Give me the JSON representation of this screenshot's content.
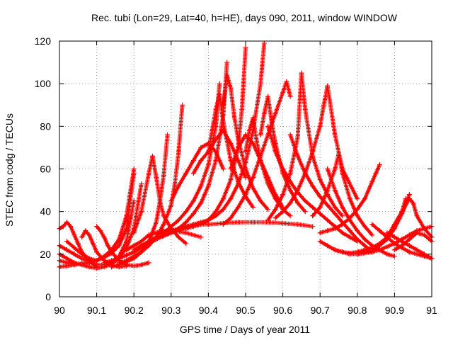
{
  "chart_data": {
    "type": "scatter",
    "title": "Rec. tubi (Lon=29, Lat=40, h=HE), days 090, 2011, window WINDOW",
    "xlabel": "GPS time / Days of year 2011",
    "ylabel": "STEC from codg / TECUs",
    "xlim": [
      90,
      91
    ],
    "ylim": [
      0,
      120
    ],
    "xticks": [
      "90",
      "90.1",
      "90.2",
      "90.3",
      "90.4",
      "90.5",
      "90.6",
      "90.7",
      "90.8",
      "90.9",
      "91"
    ],
    "yticks": [
      "0",
      "20",
      "40",
      "60",
      "80",
      "100",
      "120"
    ],
    "grid": true,
    "marker": "+",
    "color": "#ff0000",
    "series": [
      {
        "x": [
          90.0,
          90.02,
          90.04,
          90.06,
          90.08,
          90.1,
          90.12,
          90.14,
          90.16,
          90.18,
          90.2
        ],
        "y": [
          17,
          16,
          15.5,
          15.5,
          16,
          17,
          19,
          22,
          27,
          38,
          60
        ]
      },
      {
        "x": [
          90.0,
          90.02,
          90.04,
          90.06,
          90.08,
          90.1,
          90.12,
          90.14,
          90.16,
          90.18,
          90.2
        ],
        "y": [
          14,
          14.5,
          15,
          15.5,
          16,
          17,
          18.5,
          20.5,
          24,
          32,
          58
        ]
      },
      {
        "x": [
          90.0,
          90.02,
          90.04,
          90.06,
          90.08,
          90.1,
          90.12,
          90.14,
          90.16,
          90.18,
          90.2,
          90.22
        ],
        "y": [
          20,
          18,
          16,
          15,
          14,
          13.5,
          14,
          15.5,
          18,
          23,
          32,
          53
        ]
      },
      {
        "x": [
          90.0,
          90.02,
          90.04,
          90.06,
          90.08,
          90.1,
          90.12,
          90.14,
          90.16,
          90.18,
          90.2
        ],
        "y": [
          24,
          22,
          20,
          18,
          16.5,
          15,
          15,
          16,
          19,
          26,
          45
        ]
      },
      {
        "x": [
          90.0,
          90.01,
          90.02,
          90.03,
          90.04,
          90.05,
          90.06,
          90.08,
          90.1
        ],
        "y": [
          32,
          33,
          35,
          33,
          29,
          25,
          21,
          17,
          14
        ]
      },
      {
        "x": [
          90.06,
          90.07,
          90.08,
          90.09,
          90.1,
          90.12,
          90.14,
          90.16,
          90.18
        ],
        "y": [
          28,
          31,
          29,
          25,
          21,
          17,
          15,
          14,
          14.5
        ]
      },
      {
        "x": [
          90.1,
          90.11,
          90.12,
          90.13,
          90.14,
          90.16,
          90.18,
          90.2,
          90.22,
          90.24
        ],
        "y": [
          33,
          31,
          28,
          24,
          21,
          17,
          15,
          14.5,
          15,
          16
        ]
      },
      {
        "x": [
          90.14,
          90.16,
          90.18,
          90.2,
          90.22,
          90.24,
          90.26,
          90.27,
          90.28,
          90.29
        ],
        "y": [
          14,
          15,
          16.5,
          18,
          21,
          26,
          35,
          45,
          57,
          76
        ]
      },
      {
        "x": [
          90.16,
          90.18,
          90.2,
          90.22,
          90.24,
          90.26,
          90.28,
          90.3,
          90.31,
          90.32,
          90.33
        ],
        "y": [
          16,
          17,
          19,
          21,
          24,
          28,
          34,
          43,
          53,
          68,
          90
        ]
      },
      {
        "x": [
          90.2,
          90.22,
          90.24,
          90.25,
          90.26,
          90.27,
          90.28,
          90.3,
          90.32,
          90.34
        ],
        "y": [
          30,
          40,
          58,
          66,
          56,
          45,
          38,
          32,
          28,
          25
        ]
      },
      {
        "x": [
          90.18,
          90.2,
          90.22,
          90.24,
          90.26,
          90.28,
          90.3,
          90.34,
          90.38
        ],
        "y": [
          22,
          24,
          26,
          29,
          30,
          31,
          31,
          30,
          28
        ]
      },
      {
        "x": [
          90.2,
          90.22,
          90.24,
          90.26,
          90.28,
          90.3,
          90.32,
          90.34,
          90.36,
          90.38,
          90.4,
          90.42,
          90.43
        ],
        "y": [
          22,
          24,
          26,
          28,
          30,
          33,
          36,
          40,
          45,
          52,
          62,
          80,
          100
        ]
      },
      {
        "x": [
          90.24,
          90.26,
          90.28,
          90.3,
          90.32,
          90.34,
          90.36,
          90.38,
          90.4,
          90.42,
          90.44,
          90.45
        ],
        "y": [
          26,
          28,
          29,
          30,
          32,
          35,
          39,
          44,
          52,
          64,
          85,
          110
        ]
      },
      {
        "x": [
          90.28,
          90.3,
          90.32,
          90.34,
          90.36,
          90.38,
          90.4,
          90.42,
          90.44,
          90.46,
          90.48,
          90.49,
          90.5
        ],
        "y": [
          30,
          31,
          31.5,
          32,
          33,
          34,
          36,
          40,
          46,
          55,
          70,
          88,
          117
        ]
      },
      {
        "x": [
          90.3,
          90.32,
          90.34,
          90.36,
          90.38,
          90.4,
          90.42,
          90.44,
          90.46,
          90.48,
          90.5,
          90.52,
          90.54,
          90.55
        ],
        "y": [
          31,
          32,
          33,
          34,
          35,
          36,
          38,
          41,
          46,
          53,
          63,
          78,
          100,
          119
        ]
      },
      {
        "x": [
          90.4,
          90.41,
          90.42,
          90.43,
          90.44,
          90.46,
          90.48,
          90.5,
          90.52
        ],
        "y": [
          68,
          78,
          88,
          95,
          82,
          64,
          54,
          47,
          42
        ]
      },
      {
        "x": [
          90.44,
          90.45,
          90.46,
          90.47,
          90.48,
          90.5,
          90.52,
          90.54,
          90.56
        ],
        "y": [
          90,
          104,
          98,
          84,
          74,
          60,
          51,
          45,
          41
        ]
      },
      {
        "x": [
          90.5,
          90.51,
          90.52,
          90.53,
          90.54,
          90.56,
          90.58,
          90.6,
          90.62
        ],
        "y": [
          68,
          78,
          84,
          73,
          64,
          53,
          46,
          41,
          38
        ]
      },
      {
        "x": [
          90.54,
          90.55,
          90.56,
          90.57,
          90.58,
          90.6,
          90.62,
          90.64,
          90.66
        ],
        "y": [
          76,
          86,
          94,
          82,
          72,
          58,
          50,
          44,
          40
        ]
      },
      {
        "x": [
          90.44,
          90.46,
          90.48,
          90.5,
          90.52,
          90.54,
          90.56,
          90.58,
          90.6,
          90.61,
          90.62
        ],
        "y": [
          34,
          37,
          42,
          48,
          56,
          66,
          76,
          86,
          96,
          101,
          94
        ]
      },
      {
        "x": [
          90.56,
          90.58,
          90.6,
          90.62,
          90.64,
          90.65,
          90.66,
          90.68,
          90.7,
          90.72,
          90.74,
          90.76
        ],
        "y": [
          36,
          41,
          48,
          58,
          75,
          105,
          88,
          66,
          55,
          48,
          42,
          38
        ]
      },
      {
        "x": [
          90.58,
          90.6,
          90.62,
          90.64,
          90.66,
          90.68,
          90.7,
          90.71,
          90.72,
          90.74,
          90.76,
          90.8
        ],
        "y": [
          37,
          40,
          44,
          50,
          58,
          68,
          80,
          90,
          99,
          76,
          60,
          46
        ]
      },
      {
        "x": [
          90.56,
          90.58,
          90.6,
          90.62,
          90.64,
          90.66,
          90.68,
          90.7,
          90.72,
          90.74,
          90.76,
          90.78,
          90.8
        ],
        "y": [
          80,
          68,
          60,
          54,
          49,
          45,
          42,
          39,
          36,
          33,
          30,
          28,
          26
        ]
      },
      {
        "x": [
          90.62,
          90.64,
          90.66,
          90.68,
          90.7,
          90.72,
          90.74,
          90.76,
          90.78,
          90.8,
          90.82,
          90.84
        ],
        "y": [
          76,
          66,
          58,
          52,
          47,
          43,
          39,
          35,
          31,
          27,
          24,
          21
        ]
      },
      {
        "x": [
          90.68,
          90.7,
          90.72,
          90.74,
          90.75,
          90.76,
          90.78,
          90.8,
          90.82,
          90.84
        ],
        "y": [
          38,
          42,
          50,
          60,
          67,
          58,
          46,
          38,
          33,
          29
        ]
      },
      {
        "x": [
          90.7,
          90.72,
          90.74,
          90.76,
          90.78,
          90.8,
          90.82,
          90.84,
          90.85,
          90.86
        ],
        "y": [
          30,
          31,
          32,
          34,
          37,
          41,
          46,
          54,
          58,
          62
        ]
      },
      {
        "x": [
          90.72,
          90.74,
          90.76,
          90.78,
          90.8,
          90.82,
          90.84,
          90.86,
          90.88,
          90.9
        ],
        "y": [
          60,
          50,
          42,
          36,
          31,
          27,
          24,
          22,
          20,
          19
        ]
      },
      {
        "x": [
          90.7,
          90.72,
          90.74,
          90.76,
          90.78,
          90.8,
          90.82,
          90.84,
          90.86,
          90.88,
          90.9,
          90.92,
          90.94
        ],
        "y": [
          26,
          24,
          22,
          21,
          20,
          20,
          21,
          22,
          24,
          27,
          32,
          39,
          48
        ]
      },
      {
        "x": [
          90.74,
          90.76,
          90.78,
          90.8,
          90.82,
          90.84,
          90.86,
          90.88,
          90.9,
          90.92,
          90.93
        ],
        "y": [
          22,
          21,
          20.5,
          21,
          22,
          23,
          25,
          28,
          33,
          40,
          46
        ]
      },
      {
        "x": [
          90.8,
          90.82,
          90.84,
          90.86,
          90.88,
          90.9,
          90.92,
          90.94,
          90.96,
          90.98,
          91.0
        ],
        "y": [
          20,
          20.5,
          21,
          22,
          23.5,
          25,
          27,
          29,
          31,
          32,
          33
        ]
      },
      {
        "x": [
          90.86,
          90.88,
          90.9,
          90.92,
          90.94,
          90.95,
          90.96,
          90.98,
          91.0
        ],
        "y": [
          24,
          28,
          34,
          40,
          46,
          44,
          38,
          32,
          28
        ]
      },
      {
        "x": [
          90.84,
          90.86,
          90.88,
          90.9,
          90.92,
          90.94,
          90.96,
          90.98,
          91.0
        ],
        "y": [
          34,
          31,
          28,
          25,
          23,
          21,
          20,
          19,
          18
        ]
      },
      {
        "x": [
          90.88,
          90.9,
          90.92,
          90.94,
          90.96,
          90.98,
          91.0
        ],
        "y": [
          30,
          28,
          26,
          24,
          22,
          20,
          18
        ]
      },
      {
        "x": [
          90.9,
          90.92,
          90.94,
          90.96,
          90.98,
          91.0
        ],
        "y": [
          22,
          24,
          27,
          30,
          29,
          26
        ]
      },
      {
        "x": [
          90.12,
          90.14,
          90.16,
          90.18,
          90.2,
          90.22,
          90.24,
          90.26,
          90.28,
          90.3,
          90.32,
          90.34,
          90.36,
          90.38,
          90.4
        ],
        "y": [
          16,
          17,
          18,
          19.5,
          21,
          23,
          25,
          27,
          28.5,
          30,
          31.5,
          33,
          33.5,
          34,
          34
        ]
      },
      {
        "x": [
          90.4,
          90.44,
          90.48,
          90.52,
          90.56,
          90.6,
          90.64,
          90.68
        ],
        "y": [
          34,
          34.5,
          35,
          35,
          35,
          34.5,
          34,
          33
        ]
      },
      {
        "x": [
          90.3,
          90.32,
          90.34,
          90.36,
          90.38,
          90.4,
          90.42,
          90.44
        ],
        "y": [
          45,
          52,
          58,
          64,
          70,
          72,
          68,
          60
        ]
      },
      {
        "x": [
          90.36,
          90.38,
          90.4,
          90.42,
          90.44,
          90.46,
          90.48,
          90.5
        ],
        "y": [
          58,
          64,
          68,
          74,
          78,
          72,
          64,
          56
        ]
      },
      {
        "x": [
          90.46,
          90.48,
          90.5,
          90.52,
          90.54,
          90.56,
          90.58,
          90.6
        ],
        "y": [
          60,
          70,
          76,
          72,
          64,
          56,
          48,
          42
        ]
      },
      {
        "x": [
          90.02,
          90.04,
          90.06,
          90.08,
          90.1
        ],
        "y": [
          26,
          23,
          20,
          18,
          17
        ]
      }
    ]
  }
}
